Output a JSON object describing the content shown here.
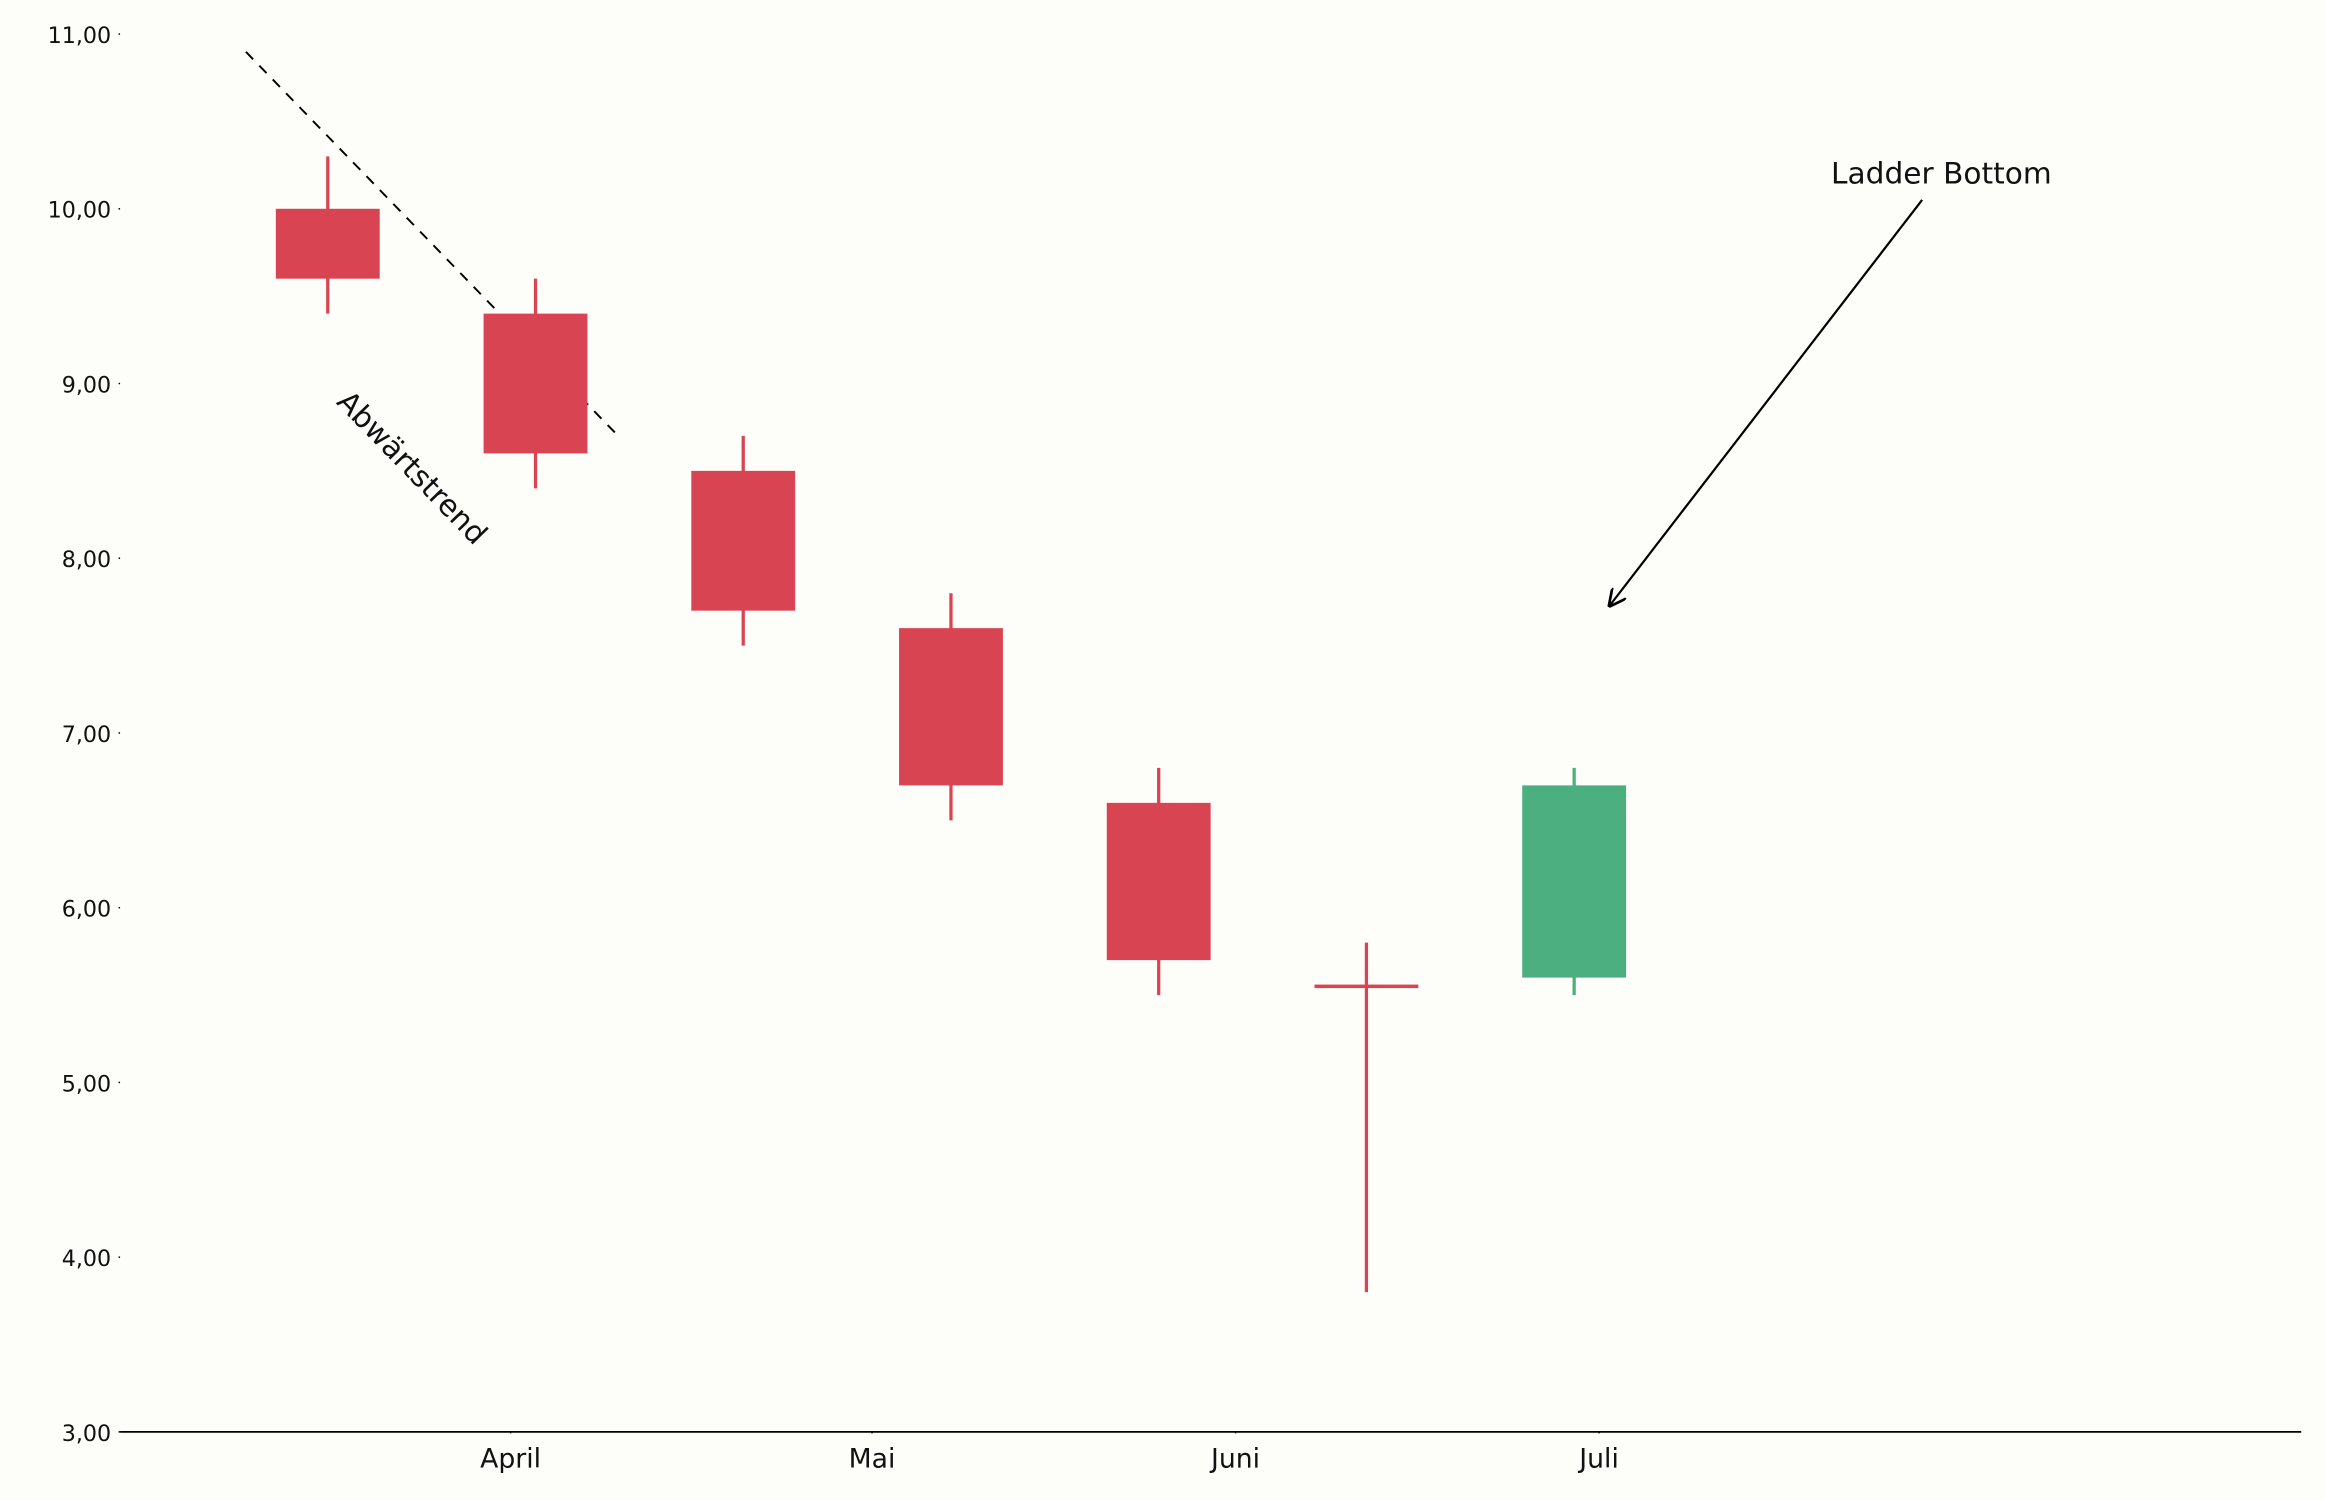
{
  "chart_data": {
    "type": "candlestick",
    "x": [
      0,
      1,
      2,
      3,
      4,
      5,
      6
    ],
    "open": [
      10.0,
      9.4,
      8.5,
      7.6,
      6.6,
      5.56,
      5.6
    ],
    "high": [
      10.3,
      9.6,
      8.7,
      7.8,
      6.8,
      5.8,
      6.8
    ],
    "low": [
      9.4,
      8.4,
      7.5,
      6.5,
      5.5,
      3.8,
      5.5
    ],
    "close": [
      9.6,
      8.6,
      7.7,
      6.7,
      5.7,
      5.54,
      6.7
    ],
    "up_color": "#4caf7f",
    "down_color": "#d94452",
    "xlim": [
      -1.0,
      9.5
    ],
    "xticks": [
      {
        "value": 0.88,
        "label": "April"
      },
      {
        "value": 2.62,
        "label": "Mai"
      },
      {
        "value": 4.37,
        "label": "Juni"
      },
      {
        "value": 6.12,
        "label": "Juli"
      }
    ],
    "ylim": [
      3,
      11
    ],
    "yticks": [
      {
        "value": 3,
        "label": "3,00"
      },
      {
        "value": 4,
        "label": "4,00"
      },
      {
        "value": 5,
        "label": "5,00"
      },
      {
        "value": 6,
        "label": "6,00"
      },
      {
        "value": 7,
        "label": "7,00"
      },
      {
        "value": 8,
        "label": "8,00"
      },
      {
        "value": 9,
        "label": "9,00"
      },
      {
        "value": 10,
        "label": "10,00"
      },
      {
        "value": 11,
        "label": "11,00"
      }
    ],
    "annotations": [
      "Abwärtstrend",
      "Ladder Bottom"
    ]
  }
}
